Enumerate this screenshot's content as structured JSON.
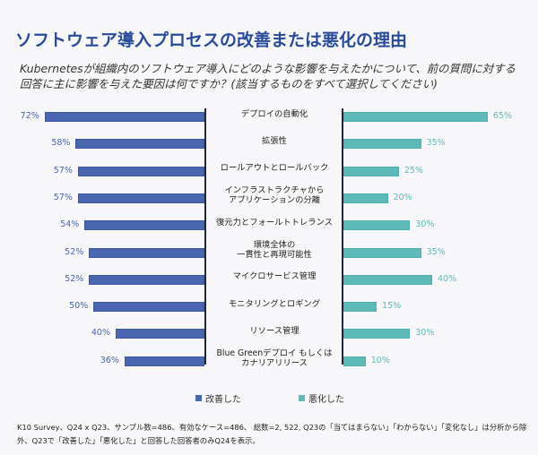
{
  "chart_data": {
    "type": "bar",
    "orientation": "horizontal-diverging",
    "title": "ソフトウェア導入プロセスの改善または悪化の理由",
    "subtitle": "Kubernetesが組織内のソフトウェア導入にどのような影響を与えたかについて、前の質問に対する回答に主に影響を与えた要因は何ですか？(該当するものをすべて選択してください)",
    "categories": [
      "デプロイの自動化",
      "拡張性",
      "ロールアウトとロールバック",
      "インフラストラクチャから\nアプリケーションの分離",
      "復元力とフォールトトレランス",
      "環境全体の\n一貫性と再現可能性",
      "マイクロサービス管理",
      "モニタリングとロギング",
      "リソース管理",
      "Blue Greenデプロイ もしくは\nカナリアリリース"
    ],
    "series": [
      {
        "name": "改善した",
        "color": "#4a66b0",
        "side": "left",
        "values": [
          72,
          58,
          57,
          57,
          54,
          52,
          52,
          50,
          40,
          36
        ]
      },
      {
        "name": "悪化した",
        "color": "#5ebab9",
        "side": "right",
        "values": [
          65,
          35,
          25,
          20,
          30,
          35,
          40,
          15,
          30,
          10
        ]
      }
    ],
    "value_format": "{v}%",
    "xlim": [
      0,
      72
    ],
    "legend": "bottom-center",
    "grid": false
  },
  "footnote": "K10 Survey、Q24 x Q23、サンプル数=486、有効なケース=486、 総数=2, 522, Q23の「当てはまらない」「わからない」「変化なし」は分析から除外、Q23で「改善した」「悪化した」と回答した回答者のみQ24を表示。"
}
